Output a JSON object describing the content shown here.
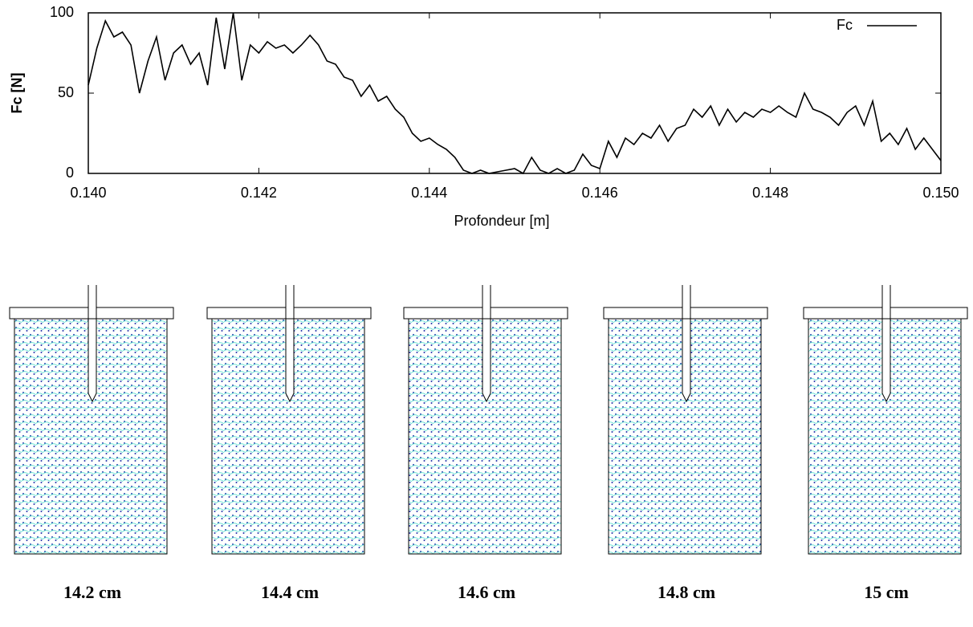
{
  "chart_data": {
    "type": "line",
    "x_label": "Profondeur [m]",
    "y_label": "Fc [N]",
    "x": [
      0.14,
      0.1401,
      0.1402,
      0.1403,
      0.1404,
      0.1405,
      0.1406,
      0.1407,
      0.1408,
      0.1409,
      0.141,
      0.1411,
      0.1412,
      0.1413,
      0.1414,
      0.1415,
      0.1416,
      0.1417,
      0.1418,
      0.1419,
      0.142,
      0.1421,
      0.1422,
      0.1423,
      0.1424,
      0.1425,
      0.1426,
      0.1427,
      0.1428,
      0.1429,
      0.143,
      0.1431,
      0.1432,
      0.1433,
      0.1434,
      0.1435,
      0.1436,
      0.1437,
      0.1438,
      0.1439,
      0.144,
      0.1441,
      0.1442,
      0.1443,
      0.1444,
      0.1445,
      0.1446,
      0.1447,
      0.1448,
      0.1449,
      0.145,
      0.1451,
      0.1452,
      0.1453,
      0.1454,
      0.1455,
      0.1456,
      0.1457,
      0.1458,
      0.1459,
      0.146,
      0.1461,
      0.1462,
      0.1463,
      0.1464,
      0.1465,
      0.1466,
      0.1467,
      0.1468,
      0.1469,
      0.147,
      0.1471,
      0.1472,
      0.1473,
      0.1474,
      0.1475,
      0.1476,
      0.1477,
      0.1478,
      0.1479,
      0.148,
      0.1481,
      0.1482,
      0.1483,
      0.1484,
      0.1485,
      0.1486,
      0.1487,
      0.1488,
      0.1489,
      0.149,
      0.1491,
      0.1492,
      0.1493,
      0.1494,
      0.1495,
      0.1496,
      0.1497,
      0.1498,
      0.1499,
      0.15
    ],
    "series": [
      {
        "name": "Fc",
        "color": "#000000",
        "values": [
          55,
          78,
          95,
          85,
          88,
          80,
          50,
          70,
          85,
          58,
          75,
          80,
          68,
          75,
          55,
          97,
          65,
          100,
          58,
          80,
          75,
          82,
          78,
          80,
          75,
          80,
          86,
          80,
          70,
          68,
          60,
          58,
          48,
          55,
          45,
          48,
          40,
          35,
          25,
          20,
          22,
          18,
          15,
          10,
          2,
          0,
          2,
          0,
          1,
          2,
          3,
          0,
          10,
          2,
          0,
          3,
          0,
          2,
          12,
          5,
          3,
          20,
          10,
          22,
          18,
          25,
          22,
          30,
          20,
          28,
          30,
          40,
          35,
          42,
          30,
          40,
          32,
          38,
          35,
          40,
          38,
          42,
          38,
          35,
          50,
          40,
          38,
          35,
          30,
          38,
          42,
          30,
          45,
          20,
          25,
          18,
          28,
          15,
          22,
          15,
          8
        ]
      }
    ],
    "xlim": [
      0.14,
      0.15
    ],
    "ylim": [
      0,
      100
    ],
    "xticks": [
      {
        "value": 0.14,
        "label": "0.140"
      },
      0.142,
      0.144,
      0.146,
      0.148,
      {
        "value": 0.15,
        "label": "0.150"
      }
    ],
    "yticks": [
      0,
      50,
      100
    ],
    "legend": "top-right",
    "grid": false
  },
  "snapshots": {
    "captions": [
      "14.2 cm",
      "14.4 cm",
      "14.6 cm",
      "14.8 cm",
      "15 cm"
    ]
  }
}
